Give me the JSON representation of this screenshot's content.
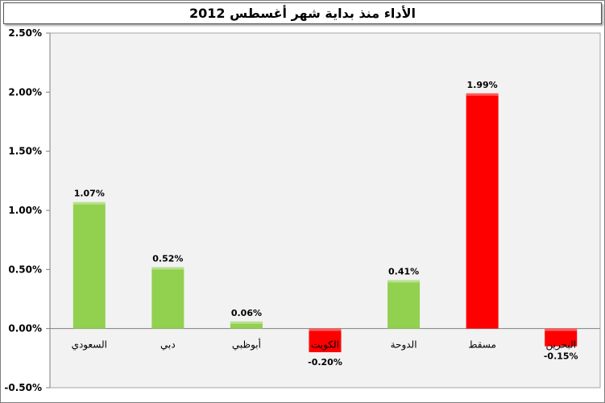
{
  "chart_data": {
    "type": "bar",
    "title": "الأداء منذ بداية شهر أغسطس 2012",
    "categories": [
      "السعودي",
      "دبي",
      "أبوظبي",
      "الكويت",
      "الدوحة",
      "مسقط",
      "البحرين"
    ],
    "values": [
      1.07,
      0.52,
      0.06,
      -0.2,
      0.41,
      1.99,
      -0.15
    ],
    "data_labels": [
      "1.07%",
      "0.52%",
      "0.06%",
      "-0.20%",
      "0.41%",
      "1.99%",
      "-0.15%"
    ],
    "bar_colors": [
      "#92d050",
      "#92d050",
      "#92d050",
      "#ff0000",
      "#92d050",
      "#ff0000",
      "#ff0000"
    ],
    "yticks": [
      2.5,
      2.0,
      1.5,
      1.0,
      0.5,
      0.0,
      -0.5
    ],
    "ytick_labels": [
      "2.50%",
      "2.00%",
      "1.50%",
      "1.00%",
      "0.50%",
      "0.00%",
      "-0.50%"
    ],
    "ylim": [
      -0.5,
      2.5
    ],
    "grid": false,
    "legend": "none",
    "plot_background": "#f2f2f2"
  }
}
